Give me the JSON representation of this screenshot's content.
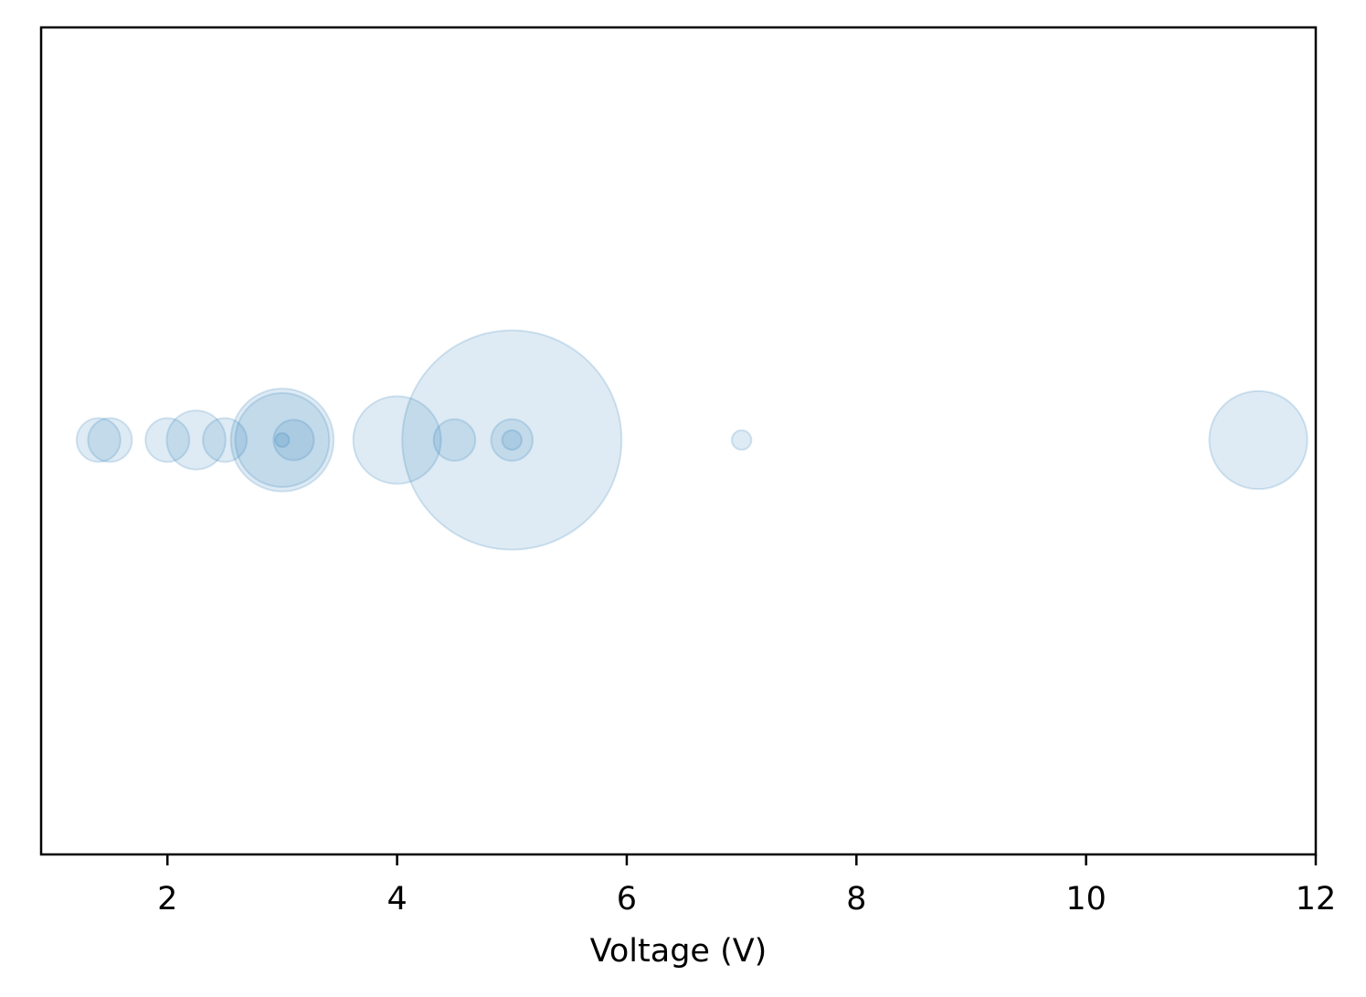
{
  "chart_data": {
    "type": "scatter",
    "title": "",
    "xlabel": "Voltage (V)",
    "ylabel": "",
    "xlim": [
      0.9,
      12
    ],
    "x_ticks": [
      2,
      4,
      6,
      8,
      10,
      12
    ],
    "y_ticks_visible": false,
    "grid": false,
    "legend": "none",
    "marker_color": "#1f77b4",
    "marker_alpha": 0.15,
    "y_constant": 0,
    "points": [
      {
        "x": 1.4,
        "size": 1.0
      },
      {
        "x": 1.5,
        "size": 1.0
      },
      {
        "x": 2.0,
        "size": 1.0
      },
      {
        "x": 2.25,
        "size": 1.8
      },
      {
        "x": 2.5,
        "size": 1.0
      },
      {
        "x": 3.0,
        "size": 5.5
      },
      {
        "x": 3.0,
        "size": 4.6
      },
      {
        "x": 3.0,
        "size": 0.1
      },
      {
        "x": 3.1,
        "size": 0.85
      },
      {
        "x": 4.0,
        "size": 4.0
      },
      {
        "x": 4.5,
        "size": 0.9
      },
      {
        "x": 5.0,
        "size": 25.0
      },
      {
        "x": 5.0,
        "size": 0.9
      },
      {
        "x": 5.0,
        "size": 0.2
      },
      {
        "x": 7.0,
        "size": 0.2
      },
      {
        "x": 11.5,
        "size": 5.0
      }
    ]
  }
}
